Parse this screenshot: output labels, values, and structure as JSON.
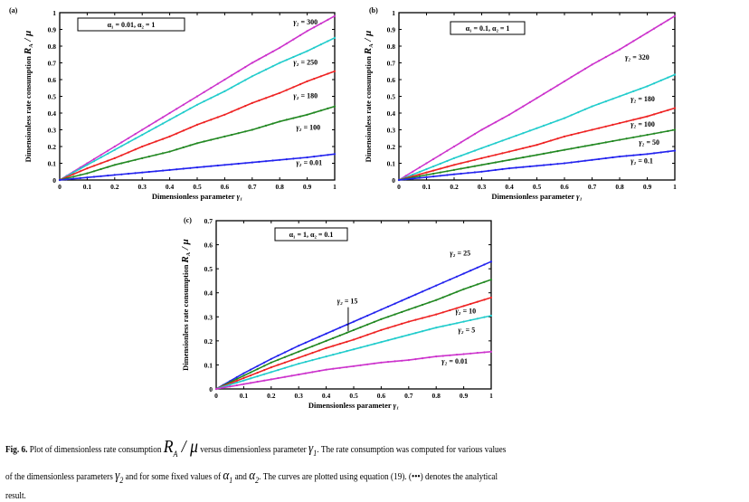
{
  "chart_data": [
    {
      "type": "line",
      "panel_label": "(a)",
      "title": "",
      "xlabel": "Dimensionless parameter γ₁",
      "ylabel": "Dimensionless rate consumption R_A / μ",
      "xlim": [
        0,
        1
      ],
      "ylim": [
        0,
        1
      ],
      "xticks": [
        "0",
        "0.1",
        "0.2",
        "0.3",
        "0.4",
        "0.5",
        "0.6",
        "0.7",
        "0.8",
        "0.9",
        "1"
      ],
      "yticks": [
        "0",
        "0.1",
        "0.2",
        "0.3",
        "0.4",
        "0.5",
        "0.6",
        "0.7",
        "0.8",
        "0.9",
        "1"
      ],
      "params_box": "α₁ = 0.01, α₂ = 1",
      "x": [
        0,
        0.1,
        0.2,
        0.3,
        0.4,
        0.5,
        0.6,
        0.7,
        0.8,
        0.9,
        1.0
      ],
      "series": [
        {
          "name": "γ₂ = 300",
          "color": "#cc33cc",
          "values": [
            0,
            0.1,
            0.2,
            0.3,
            0.4,
            0.5,
            0.6,
            0.7,
            0.79,
            0.89,
            0.98
          ]
        },
        {
          "name": "γ₂ = 250",
          "color": "#22cccc",
          "values": [
            0,
            0.09,
            0.18,
            0.27,
            0.36,
            0.45,
            0.53,
            0.62,
            0.7,
            0.77,
            0.85
          ]
        },
        {
          "name": "γ₂ = 180",
          "color": "#ee2222",
          "values": [
            0,
            0.07,
            0.13,
            0.2,
            0.26,
            0.33,
            0.39,
            0.46,
            0.52,
            0.59,
            0.65
          ]
        },
        {
          "name": "γ₂ = 100",
          "color": "#228822",
          "values": [
            0,
            0.04,
            0.09,
            0.13,
            0.17,
            0.22,
            0.26,
            0.3,
            0.35,
            0.39,
            0.44
          ]
        },
        {
          "name": "γ₂ = 0.01",
          "color": "#2222ee",
          "values": [
            0,
            0.015,
            0.03,
            0.045,
            0.06,
            0.075,
            0.09,
            0.105,
            0.12,
            0.135,
            0.155
          ]
        }
      ],
      "annotations": [
        {
          "text": "γ₂ = 300",
          "x": 0.85,
          "y": 0.93
        },
        {
          "text": "γ₂ = 250",
          "x": 0.85,
          "y": 0.69
        },
        {
          "text": "γ₂ = 180",
          "x": 0.85,
          "y": 0.49
        },
        {
          "text": "γ₂ = 100",
          "x": 0.86,
          "y": 0.3
        },
        {
          "text": "γ₂ = 0.01",
          "x": 0.86,
          "y": 0.09
        }
      ]
    },
    {
      "type": "line",
      "panel_label": "(b)",
      "title": "",
      "xlabel": "Dimensionless parameter γ₁",
      "ylabel": "Dimensionless rate consumption R_A / μ",
      "xlim": [
        0,
        1
      ],
      "ylim": [
        0,
        1
      ],
      "xticks": [
        "0",
        "0.1",
        "0.2",
        "0.3",
        "0.4",
        "0.5",
        "0.6",
        "0.7",
        "0.8",
        "0.9",
        "1"
      ],
      "yticks": [
        "0",
        "0.1",
        "0.2",
        "0.3",
        "0.4",
        "0.5",
        "0.6",
        "0.7",
        "0.8",
        "0.9",
        "1"
      ],
      "params_box": "α₁ = 0.1, α₂ = 1",
      "x": [
        0,
        0.1,
        0.2,
        0.3,
        0.4,
        0.5,
        0.6,
        0.7,
        0.8,
        0.9,
        1.0
      ],
      "series": [
        {
          "name": "γ₂ = 320",
          "color": "#cc33cc",
          "values": [
            0,
            0.1,
            0.2,
            0.3,
            0.39,
            0.49,
            0.59,
            0.69,
            0.78,
            0.88,
            0.98
          ]
        },
        {
          "name": "γ₂ = 180",
          "color": "#22cccc",
          "values": [
            0,
            0.065,
            0.13,
            0.19,
            0.25,
            0.31,
            0.37,
            0.44,
            0.5,
            0.56,
            0.63
          ]
        },
        {
          "name": "γ₂ = 100",
          "color": "#ee2222",
          "values": [
            0,
            0.045,
            0.09,
            0.13,
            0.17,
            0.21,
            0.26,
            0.3,
            0.34,
            0.38,
            0.43
          ]
        },
        {
          "name": "γ₂ = 50",
          "color": "#228822",
          "values": [
            0,
            0.03,
            0.06,
            0.09,
            0.12,
            0.15,
            0.18,
            0.21,
            0.24,
            0.27,
            0.3
          ]
        },
        {
          "name": "γ₂ = 0.1",
          "color": "#2222ee",
          "values": [
            0,
            0.017,
            0.034,
            0.05,
            0.07,
            0.085,
            0.1,
            0.12,
            0.14,
            0.155,
            0.175
          ]
        }
      ],
      "annotations": [
        {
          "text": "γ₂ = 320",
          "x": 0.82,
          "y": 0.72
        },
        {
          "text": "γ₂ = 180",
          "x": 0.84,
          "y": 0.47
        },
        {
          "text": "γ₂ = 100",
          "x": 0.84,
          "y": 0.32
        },
        {
          "text": "γ₂ = 50",
          "x": 0.87,
          "y": 0.21
        },
        {
          "text": "γ₂ = 0.1",
          "x": 0.84,
          "y": 0.1
        }
      ]
    },
    {
      "type": "line",
      "panel_label": "(c)",
      "title": "",
      "xlabel": "Dimensionless parameter γ₁",
      "ylabel": "Dimensionless rate consumption R_A / μ",
      "xlim": [
        0,
        1
      ],
      "ylim": [
        0,
        0.7
      ],
      "xticks": [
        "0",
        "0.1",
        "0.2",
        "0.3",
        "0.4",
        "0.5",
        "0.6",
        "0.7",
        "0.8",
        "0.9",
        "1"
      ],
      "yticks": [
        "0",
        "0.1",
        "0.2",
        "0.3",
        "0.4",
        "0.5",
        "0.6",
        "0.7"
      ],
      "params_box": "α₁ = 1, α₂ = 0.1",
      "x": [
        0,
        0.1,
        0.2,
        0.3,
        0.4,
        0.5,
        0.6,
        0.7,
        0.8,
        0.9,
        1.0
      ],
      "series": [
        {
          "name": "γ₂ = 25",
          "color": "#2222ee",
          "values": [
            0,
            0.065,
            0.125,
            0.18,
            0.23,
            0.28,
            0.33,
            0.38,
            0.43,
            0.48,
            0.53
          ]
        },
        {
          "name": "γ₂ = 15",
          "color": "#228822",
          "values": [
            0,
            0.055,
            0.11,
            0.155,
            0.2,
            0.245,
            0.29,
            0.33,
            0.37,
            0.415,
            0.455
          ]
        },
        {
          "name": "γ₂ = 10",
          "color": "#ee2222",
          "values": [
            0,
            0.045,
            0.09,
            0.13,
            0.17,
            0.205,
            0.245,
            0.28,
            0.31,
            0.345,
            0.38
          ]
        },
        {
          "name": "γ₂ = 5",
          "color": "#22cccc",
          "values": [
            0,
            0.035,
            0.07,
            0.105,
            0.135,
            0.165,
            0.195,
            0.225,
            0.255,
            0.28,
            0.305
          ]
        },
        {
          "name": "γ₂ = 0.01",
          "color": "#cc33cc",
          "values": [
            0,
            0.02,
            0.04,
            0.06,
            0.08,
            0.095,
            0.11,
            0.12,
            0.135,
            0.145,
            0.155
          ]
        }
      ],
      "annotations": [
        {
          "text": "γ₂ = 25",
          "x": 0.85,
          "y": 0.555
        },
        {
          "text": "γ₂ = 15",
          "x": 0.44,
          "y": 0.355,
          "arrow_to": {
            "x": 0.48,
            "y": 0.24
          }
        },
        {
          "text": "γ₂ = 10",
          "x": 0.87,
          "y": 0.315
        },
        {
          "text": "γ₂ = 5",
          "x": 0.88,
          "y": 0.235
        },
        {
          "text": "γ₂ = 0.01",
          "x": 0.82,
          "y": 0.105
        }
      ]
    }
  ],
  "caption": {
    "fig_label": "Fig. 6.",
    "part1": " Plot of dimensionless rate consumption ",
    "ratio": "R",
    "ratio_sub": "A",
    "ratio_rest": " / μ",
    "part2": " versus dimensionless parameter ",
    "gamma1": "γ",
    "gamma1_sub": "1",
    "part3": ". The rate consumption was computed for various values",
    "part4": "of the dimensionless parameters ",
    "gamma2": "γ",
    "gamma2_sub": "2",
    "part5": " and for some fixed values of ",
    "alpha1": "α",
    "alpha1_sub": "1",
    "and": " and ",
    "alpha2": "α",
    "alpha2_sub": "2",
    "part6": ". The curves are plotted using equation (19). (•••) denotes the analytical",
    "part7": "result."
  }
}
